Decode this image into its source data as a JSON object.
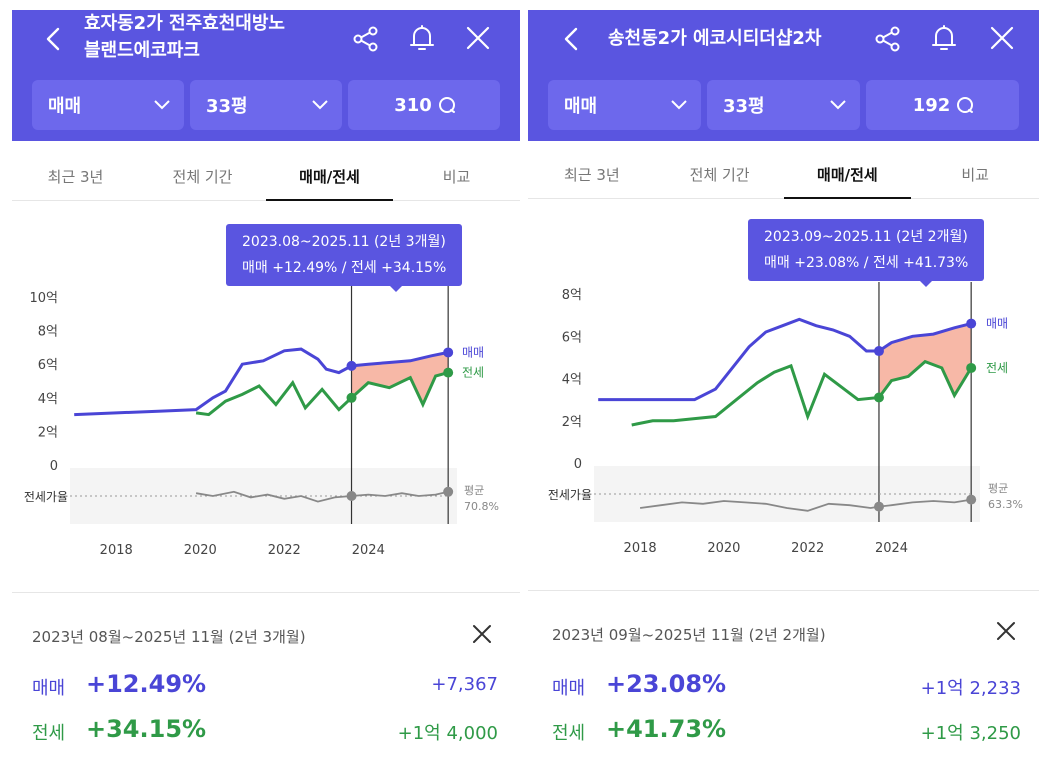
{
  "colors": {
    "header": "#5a55e0",
    "sale": "#4a45d6",
    "jeonse": "#2f9a47",
    "gap_fill": "#f4a08a",
    "ratio": "#888888"
  },
  "icons": [
    "back-icon",
    "share-icon",
    "bell-icon",
    "close-icon",
    "chevron-down-icon",
    "chat-bubble-icon"
  ],
  "panels": [
    {
      "title_line1": "효자동2가 전주효천대방노",
      "title_line2": "블랜드에코파크",
      "filters": {
        "trade_type": "매매",
        "size": "33평",
        "count": "310"
      },
      "tabs": [
        "최근 3년",
        "전체 기간",
        "매매/전세",
        "비교"
      ],
      "active_tab": 2,
      "tooltip": {
        "range": "2023.08~2025.11 (2년 3개월)",
        "change": "매매 +12.49%  /  전세 +34.15%"
      },
      "legend": {
        "sale": "매매",
        "jeonse": "전세"
      },
      "ratio": {
        "label": "전세가율",
        "avg_label": "평균",
        "avg_value": "70.8%"
      },
      "summary": {
        "range": "2023년 08월~2025년 11월 (2년 3개월)",
        "sale_label": "매매",
        "sale_pct": "+12.49%",
        "sale_amount": "+7,367",
        "jeonse_label": "전세",
        "jeonse_pct": "+34.15%",
        "jeonse_amount": "+1억 4,000"
      },
      "chart_data": {
        "type": "line",
        "y_ticks": [
          "10억",
          "8억",
          "6억",
          "4억",
          "2억",
          "0"
        ],
        "x_ticks": [
          "2018",
          "2020",
          "2022",
          "2024"
        ],
        "ylim": [
          0,
          10
        ],
        "series": [
          {
            "name": "매매",
            "x": [
              2017.0,
              2018.0,
              2019.0,
              2019.9,
              2020.3,
              2020.6,
              2021.0,
              2021.5,
              2022.0,
              2022.4,
              2022.8,
              2023.0,
              2023.3,
              2023.6,
              2024.0,
              2024.5,
              2025.0,
              2025.5,
              2025.9
            ],
            "values": [
              3.0,
              3.1,
              3.2,
              3.3,
              4.0,
              4.4,
              6.0,
              6.2,
              6.8,
              6.9,
              6.3,
              5.7,
              5.5,
              5.9,
              6.0,
              6.1,
              6.2,
              6.5,
              6.7
            ]
          },
          {
            "name": "전세",
            "x": [
              2019.9,
              2020.2,
              2020.6,
              2021.0,
              2021.4,
              2021.8,
              2022.2,
              2022.5,
              2022.9,
              2023.3,
              2023.6,
              2024.0,
              2024.5,
              2025.0,
              2025.3,
              2025.6,
              2025.9
            ],
            "values": [
              3.1,
              3.0,
              3.8,
              4.2,
              4.7,
              3.6,
              4.9,
              3.4,
              4.5,
              3.3,
              4.0,
              4.9,
              4.6,
              5.2,
              3.6,
              5.3,
              5.5
            ]
          },
          {
            "name": "전세가율",
            "x": [
              2019.9,
              2020.3,
              2020.8,
              2021.2,
              2021.6,
              2022.0,
              2022.4,
              2022.8,
              2023.2,
              2023.6,
              2024.0,
              2024.4,
              2024.8,
              2025.2,
              2025.6,
              2025.9
            ],
            "values": [
              72,
              70,
              73,
              69,
              71,
              68,
              70,
              66,
              69,
              70,
              71,
              70,
              72,
              70,
              71,
              73
            ]
          }
        ],
        "range_start": 2023.6,
        "range_end": 2025.9
      }
    },
    {
      "title_line1": "송천동2가 에코시티더샵2차",
      "title_line2": "",
      "filters": {
        "trade_type": "매매",
        "size": "33평",
        "count": "192"
      },
      "tabs": [
        "최근 3년",
        "전체 기간",
        "매매/전세",
        "비교"
      ],
      "active_tab": 2,
      "tooltip": {
        "range": "2023.09~2025.11 (2년 2개월)",
        "change": "매매 +23.08%  /  전세 +41.73%"
      },
      "legend": {
        "sale": "매매",
        "jeonse": "전세"
      },
      "ratio": {
        "label": "전세가율",
        "avg_label": "평균",
        "avg_value": "63.3%"
      },
      "summary": {
        "range": "2023년 09월~2025년 11월 (2년 2개월)",
        "sale_label": "매매",
        "sale_pct": "+23.08%",
        "sale_amount": "+1억 2,233",
        "jeonse_label": "전세",
        "jeonse_pct": "+41.73%",
        "jeonse_amount": "+1억 3,250"
      },
      "chart_data": {
        "type": "line",
        "y_ticks": [
          "8억",
          "6억",
          "4억",
          "2억",
          "0"
        ],
        "x_ticks": [
          "2018",
          "2020",
          "2022",
          "2024"
        ],
        "ylim": [
          0,
          8
        ],
        "series": [
          {
            "name": "매매",
            "x": [
              2017.0,
              2017.8,
              2018.5,
              2019.3,
              2019.8,
              2020.2,
              2020.6,
              2021.0,
              2021.4,
              2021.8,
              2022.2,
              2022.6,
              2023.0,
              2023.4,
              2023.7,
              2024.0,
              2024.5,
              2025.0,
              2025.5,
              2025.9
            ],
            "values": [
              3.0,
              3.0,
              3.0,
              3.0,
              3.5,
              4.5,
              5.5,
              6.2,
              6.5,
              6.8,
              6.5,
              6.3,
              6.0,
              5.3,
              5.3,
              5.7,
              6.0,
              6.1,
              6.4,
              6.6
            ]
          },
          {
            "name": "전세",
            "x": [
              2017.8,
              2018.3,
              2018.8,
              2019.3,
              2019.8,
              2020.3,
              2020.8,
              2021.2,
              2021.6,
              2022.0,
              2022.4,
              2022.8,
              2023.2,
              2023.7,
              2024.0,
              2024.4,
              2024.8,
              2025.2,
              2025.5,
              2025.9
            ],
            "values": [
              1.8,
              2.0,
              2.0,
              2.1,
              2.2,
              3.0,
              3.8,
              4.3,
              4.6,
              2.2,
              4.2,
              3.6,
              3.0,
              3.1,
              3.9,
              4.1,
              4.8,
              4.5,
              3.2,
              4.5
            ]
          },
          {
            "name": "전세가율",
            "x": [
              2018.0,
              2018.5,
              2019.0,
              2019.5,
              2020.0,
              2020.5,
              2021.0,
              2021.5,
              2022.0,
              2022.5,
              2023.0,
              2023.5,
              2023.7,
              2024.0,
              2024.5,
              2025.0,
              2025.5,
              2025.9
            ],
            "values": [
              60,
              62,
              64,
              63,
              65,
              64,
              63,
              60,
              58,
              63,
              62,
              60,
              61,
              62,
              64,
              65,
              64,
              66
            ]
          }
        ],
        "range_start": 2023.7,
        "range_end": 2025.9
      }
    }
  ]
}
